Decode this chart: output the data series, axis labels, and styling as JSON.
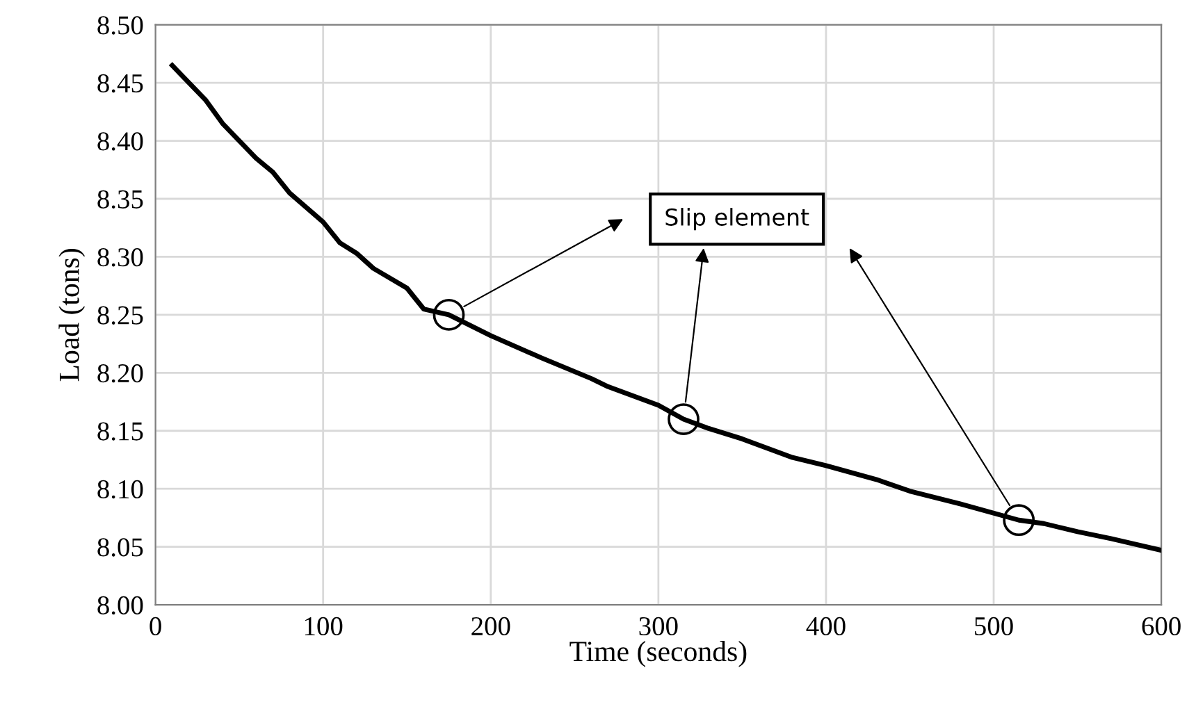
{
  "chart_data": {
    "type": "line",
    "xlabel": "Time (seconds)",
    "ylabel": "Load (tons)",
    "xlim": [
      0,
      600
    ],
    "xticks": [
      0,
      100,
      200,
      300,
      400,
      500,
      600
    ],
    "ylim": [
      8.0,
      8.5
    ],
    "yticks": [
      {
        "value": 8.0,
        "label": "8.00"
      },
      {
        "value": 8.05,
        "label": "8.05"
      },
      {
        "value": 8.1,
        "label": "8.10"
      },
      {
        "value": 8.15,
        "label": "8.15"
      },
      {
        "value": 8.2,
        "label": "8.20"
      },
      {
        "value": 8.25,
        "label": "8.25"
      },
      {
        "value": 8.3,
        "label": "8.30"
      },
      {
        "value": 8.35,
        "label": "8.35"
      },
      {
        "value": 8.4,
        "label": "8.40"
      },
      {
        "value": 8.45,
        "label": "8.45"
      },
      {
        "value": 8.5,
        "label": "8.50"
      }
    ],
    "grid": true,
    "legend": false,
    "series": [
      {
        "color": "#000000",
        "line_style": "solid",
        "marker": "none",
        "x": [
          10,
          30,
          40,
          60,
          70,
          80,
          100,
          110,
          120,
          130,
          150,
          160,
          175,
          200,
          230,
          260,
          270,
          300,
          315,
          330,
          350,
          380,
          400,
          430,
          450,
          480,
          515,
          530,
          550,
          570,
          600
        ],
        "values": [
          8.465,
          8.435,
          8.415,
          8.385,
          8.373,
          8.355,
          8.33,
          8.312,
          8.303,
          8.29,
          8.273,
          8.255,
          8.25,
          8.232,
          8.213,
          8.195,
          8.188,
          8.172,
          8.16,
          8.152,
          8.143,
          8.127,
          8.12,
          8.108,
          8.098,
          8.087,
          8.073,
          8.07,
          8.063,
          8.057,
          8.047
        ]
      },
      {
        "type": "scatter",
        "color": "#000000",
        "marker": "circle",
        "x": [
          175,
          315,
          515
        ],
        "values": [
          8.25,
          8.16,
          8.073
        ]
      }
    ],
    "annotations": [
      "Slip element"
    ]
  }
}
